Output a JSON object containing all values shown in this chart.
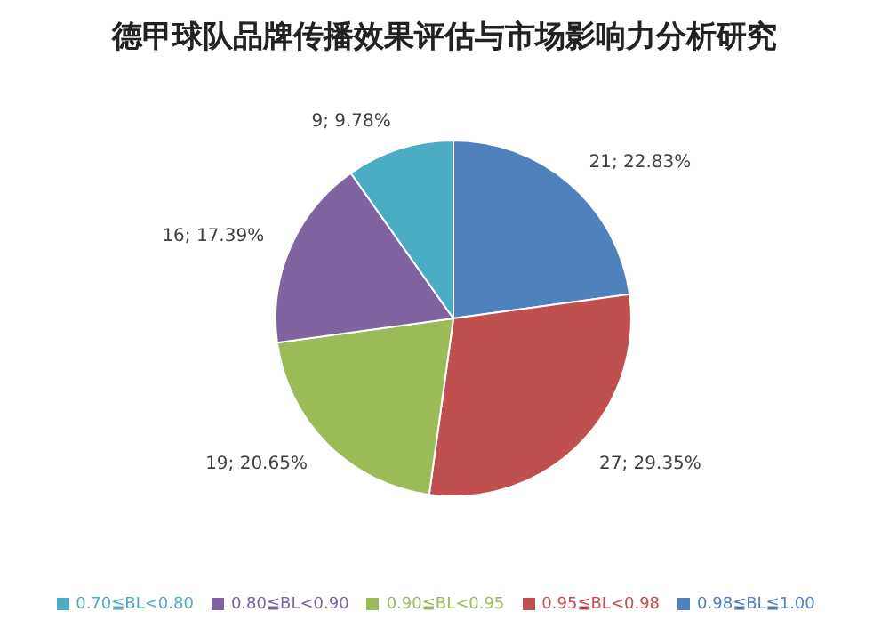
{
  "chart_data": {
    "type": "pie",
    "title": "德甲球队品牌传播效果评估与市场影响力分析研究",
    "categories": [
      "0.98≦BL≦1.00",
      "0.95≦BL<0.98",
      "0.90≦BL<0.95",
      "0.80≦BL<0.90",
      "0.70≦BL<0.80"
    ],
    "values": [
      21,
      27,
      19,
      16,
      9
    ],
    "value_labels": [
      "21; 22.83%",
      "27; 29.35%",
      "19; 20.65%",
      "16; 17.39%",
      "9; 9.78%"
    ],
    "colors": [
      "#4f81bd",
      "#c0504d",
      "#9bbb59",
      "#8064a2",
      "#4bacc6"
    ],
    "legend": "bottom"
  }
}
